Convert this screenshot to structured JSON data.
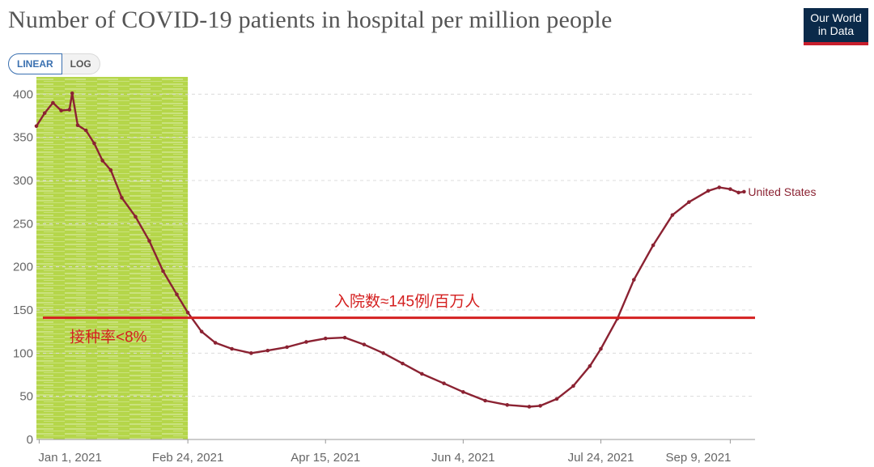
{
  "header": {
    "title": "Number of COVID-19 patients in hospital per million people",
    "logo_line1": "Our World",
    "logo_line2": "in Data"
  },
  "controls": {
    "linear_label": "LINEAR",
    "log_label": "LOG"
  },
  "colors": {
    "series": "#8b2232",
    "threshold": "#d42020",
    "highlight": "#b5d64a"
  },
  "chart_data": {
    "type": "line",
    "title": "Number of COVID-19 patients in hospital per million people",
    "xlabel": "",
    "ylabel": "",
    "x_range": [
      "2020-12-31",
      "2021-09-18"
    ],
    "ylim": [
      0,
      420
    ],
    "y_ticks": [
      0,
      50,
      100,
      150,
      200,
      250,
      300,
      350,
      400
    ],
    "x_ticks": [
      {
        "date": "2021-01-01",
        "label": "Jan 1, 2021"
      },
      {
        "date": "2021-02-24",
        "label": "Feb 24, 2021"
      },
      {
        "date": "2021-04-15",
        "label": "Apr 15, 2021"
      },
      {
        "date": "2021-06-04",
        "label": "Jun 4, 2021"
      },
      {
        "date": "2021-07-24",
        "label": "Jul 24, 2021"
      },
      {
        "date": "2021-09-09",
        "label": "Sep 9, 2021"
      }
    ],
    "grid": "horizontal dashed",
    "series": [
      {
        "name": "United States",
        "x": [
          "2020-12-31",
          "2021-01-03",
          "2021-01-06",
          "2021-01-09",
          "2021-01-12",
          "2021-01-13",
          "2021-01-15",
          "2021-01-18",
          "2021-01-21",
          "2021-01-24",
          "2021-01-27",
          "2021-01-31",
          "2021-02-05",
          "2021-02-10",
          "2021-02-15",
          "2021-02-20",
          "2021-02-24",
          "2021-03-01",
          "2021-03-06",
          "2021-03-12",
          "2021-03-19",
          "2021-03-25",
          "2021-04-01",
          "2021-04-08",
          "2021-04-15",
          "2021-04-22",
          "2021-04-29",
          "2021-05-06",
          "2021-05-13",
          "2021-05-20",
          "2021-05-28",
          "2021-06-04",
          "2021-06-12",
          "2021-06-20",
          "2021-06-28",
          "2021-07-02",
          "2021-07-08",
          "2021-07-14",
          "2021-07-20",
          "2021-07-24",
          "2021-07-30",
          "2021-08-05",
          "2021-08-12",
          "2021-08-19",
          "2021-08-25",
          "2021-09-01",
          "2021-09-05",
          "2021-09-09",
          "2021-09-12",
          "2021-09-14"
        ],
        "values": [
          363,
          378,
          390,
          381,
          382,
          401,
          364,
          358,
          343,
          323,
          312,
          280,
          258,
          230,
          195,
          168,
          147,
          125,
          112,
          105,
          100,
          103,
          107,
          113,
          117,
          118,
          110,
          100,
          88,
          76,
          65,
          55,
          45,
          40,
          38,
          39,
          47,
          62,
          85,
          105,
          140,
          185,
          225,
          260,
          275,
          288,
          292,
          290,
          286,
          287
        ]
      }
    ],
    "annotations": [
      {
        "type": "hline",
        "y": 141,
        "text": "入院数≈145例/百万人"
      },
      {
        "type": "shaded_region",
        "x_start": "2020-12-31",
        "x_end": "2021-02-24",
        "text": "接种率<8%"
      }
    ]
  }
}
